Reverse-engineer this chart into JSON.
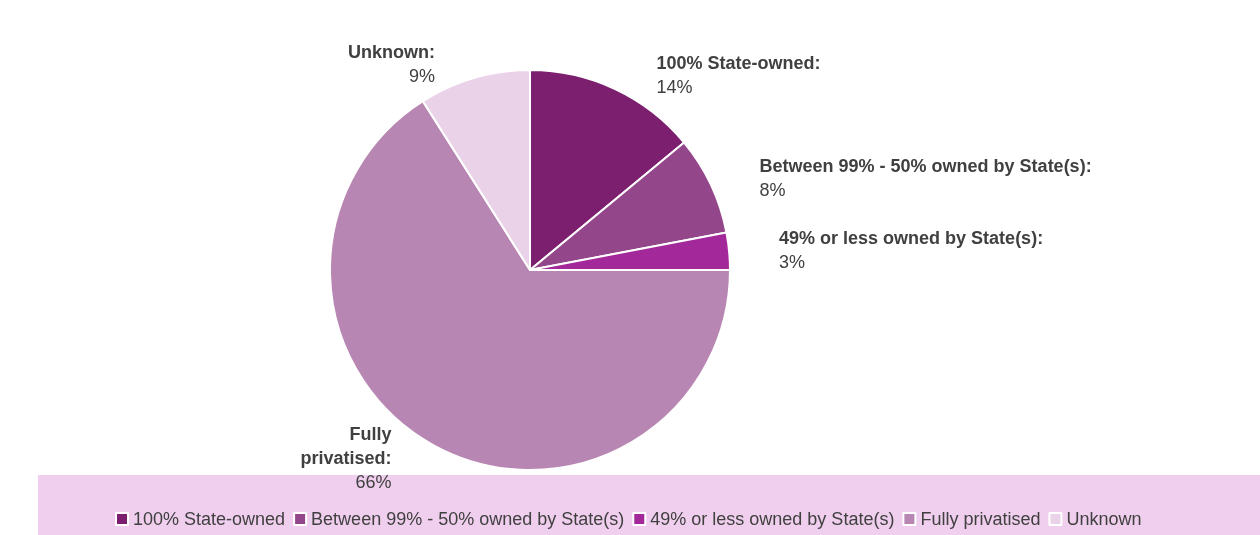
{
  "chart_data": {
    "type": "pie",
    "categories": [
      "100% State-owned",
      "Between 99% - 50% owned by State(s)",
      "49% or less owned by State(s)",
      "Fully privatised",
      "Unknown"
    ],
    "values": [
      14,
      8,
      3,
      66,
      9
    ],
    "value_labels": [
      "100% State-owned:\n14%",
      "Between 99% - 50% owned by State(s):\n8%",
      "49% or less owned by State(s):\n3%",
      "Fully\nprivatised:\n66%",
      "Unknown:\n9%"
    ],
    "colors": [
      "#7b1f6e",
      "#94468a",
      "#a3289a",
      "#b886b2",
      "#ead3e8"
    ],
    "legend": "bottom"
  }
}
